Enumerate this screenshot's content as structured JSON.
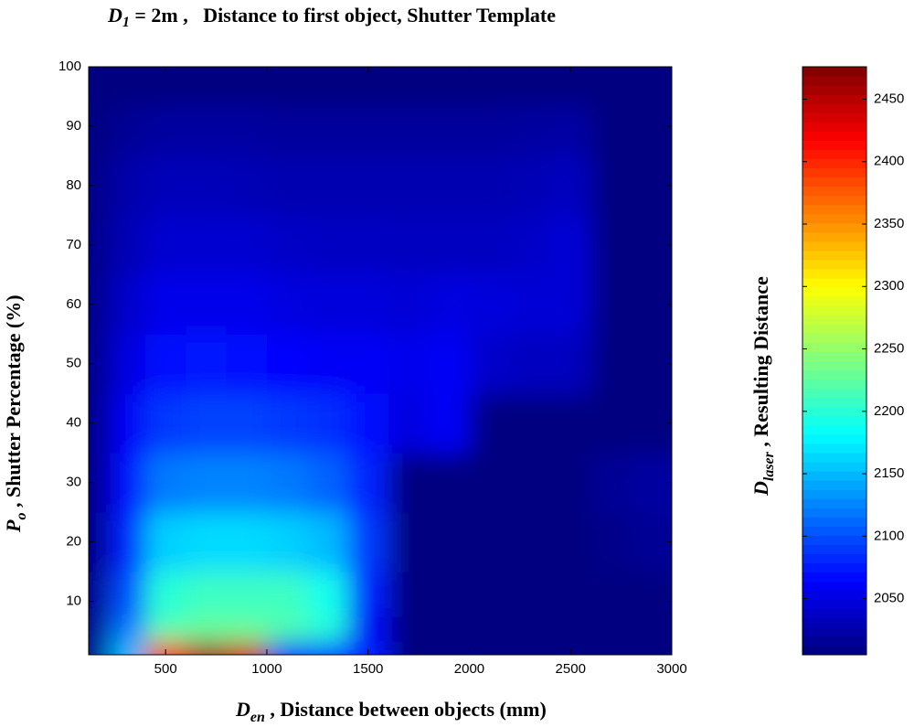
{
  "chart_data": {
    "type": "contour",
    "title": {
      "symbol": "D",
      "sub": "1",
      "text": " = 2m ,   Distance to first object, Shutter Template"
    },
    "x_label": {
      "symbol": "D",
      "sub": "en",
      "text": " , Distance between objects (mm)"
    },
    "y_label": {
      "symbol": "P",
      "sub": "o",
      "text": " , Shutter Percentage (%)"
    },
    "colorbar_label": {
      "symbol": "D",
      "sub": "laser",
      "text": " , Resulting Distance"
    },
    "x": [
      150,
      300,
      500,
      700,
      900,
      1100,
      1300,
      1500,
      1700,
      1900,
      2100,
      2300,
      2500,
      2700,
      2900
    ],
    "y": [
      1.5,
      5,
      10,
      20,
      30,
      40,
      50,
      60,
      70,
      80,
      90,
      97
    ],
    "z": [
      [
        2010,
        2150,
        2420,
        2460,
        2440,
        2080,
        2090,
        2080,
        2005,
        2005,
        2005,
        2005,
        2005,
        2005,
        2005
      ],
      [
        2010,
        2120,
        2220,
        2230,
        2230,
        2220,
        2200,
        2060,
        2005,
        2005,
        2005,
        2005,
        2005,
        2005,
        2005
      ],
      [
        2010,
        2100,
        2200,
        2210,
        2210,
        2210,
        2190,
        2080,
        2005,
        2005,
        2005,
        2005,
        2005,
        2005,
        2005
      ],
      [
        2010,
        2080,
        2160,
        2165,
        2165,
        2160,
        2150,
        2090,
        2005,
        2005,
        2005,
        2005,
        2005,
        2010,
        2015
      ],
      [
        2010,
        2070,
        2120,
        2125,
        2125,
        2120,
        2110,
        2080,
        2005,
        2005,
        2005,
        2005,
        2005,
        2015,
        2020
      ],
      [
        2010,
        2060,
        2090,
        2095,
        2095,
        2090,
        2085,
        2070,
        2050,
        2060,
        2005,
        2005,
        2005,
        2005,
        2005
      ],
      [
        2010,
        2050,
        2070,
        2072,
        2070,
        2065,
        2060,
        2060,
        2055,
        2060,
        2040,
        2035,
        2035,
        2005,
        2005
      ],
      [
        2010,
        2040,
        2055,
        2055,
        2055,
        2050,
        2048,
        2048,
        2045,
        2050,
        2048,
        2045,
        2045,
        2005,
        2005
      ],
      [
        2010,
        2030,
        2042,
        2042,
        2042,
        2038,
        2036,
        2036,
        2035,
        2035,
        2035,
        2038,
        2045,
        2005,
        2005
      ],
      [
        2008,
        2025,
        2032,
        2032,
        2030,
        2028,
        2028,
        2028,
        2028,
        2028,
        2028,
        2030,
        2035,
        2005,
        2005
      ],
      [
        2006,
        2015,
        2020,
        2020,
        2020,
        2018,
        2018,
        2018,
        2018,
        2018,
        2018,
        2020,
        2022,
        2005,
        2005
      ],
      [
        2005,
        2005,
        2005,
        2005,
        2005,
        2005,
        2005,
        2005,
        2005,
        2005,
        2005,
        2005,
        2005,
        2005,
        2005
      ]
    ],
    "colormap": "jet",
    "xlim": [
      120,
      3000
    ],
    "ylim": [
      1,
      100
    ],
    "clim": [
      2005,
      2476
    ],
    "xticks": [
      500,
      1000,
      1500,
      2000,
      2500,
      3000
    ],
    "yticks": [
      10,
      20,
      30,
      40,
      50,
      60,
      70,
      80,
      90,
      100
    ],
    "cticks": [
      2050,
      2100,
      2150,
      2200,
      2250,
      2300,
      2350,
      2400,
      2450
    ]
  }
}
